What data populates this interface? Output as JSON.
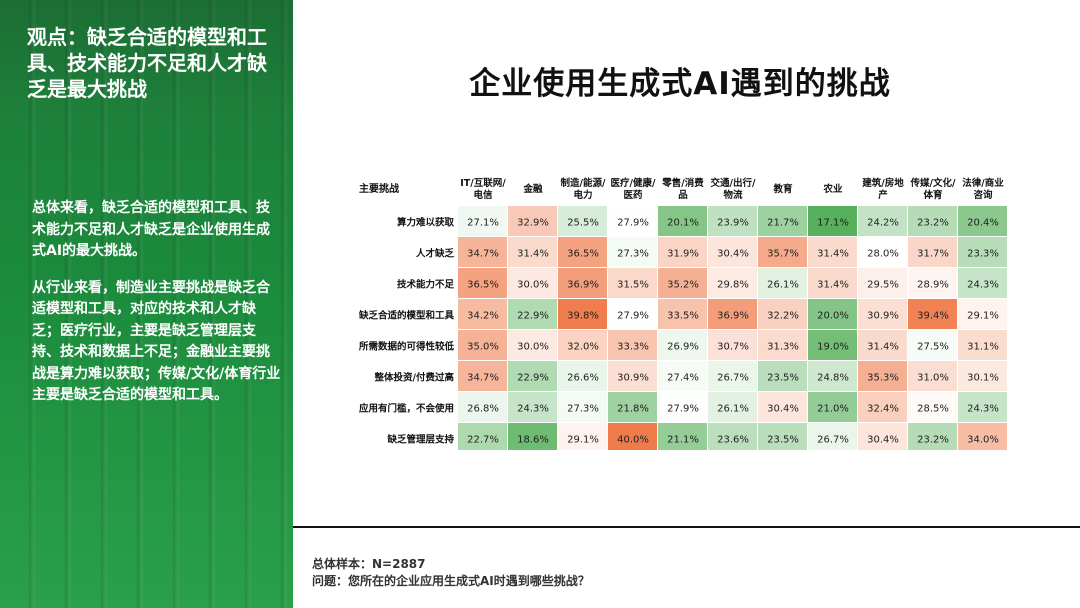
{
  "left_panel": {
    "title": "观点：缺乏合适的模型和工具、技术能力不足和人才缺乏是最大挑战",
    "paragraphs": [
      "总体来看，缺乏合适的模型和工具、技术能力不足和人才缺乏是企业使用生成式AI的最大挑战。",
      "从行业来看，制造业主要挑战是缺乏合适模型和工具，对应的技术和人才缺乏；医疗行业，主要是缺乏管理层支持、技术和数据上不足；金融业主要挑战是算力难以获取；传媒/文化/体育行业主要是缺乏合适的模型和工具。"
    ]
  },
  "main_title": "企业使用生成式AI遇到的挑战",
  "footer": {
    "sample": "总体样本：N=2887",
    "question": "问题：您所在的企业应用生成式AI时遇到哪些挑战？"
  },
  "colors": {
    "high": "#ef7b4b",
    "mid": "#ffffff",
    "low": "#57b05b"
  },
  "chart_data": {
    "type": "heatmap",
    "row_header": "主要挑战",
    "columns": [
      [
        "IT/互联网/",
        "电信"
      ],
      [
        "金融"
      ],
      [
        "制造/能源/",
        "电力"
      ],
      [
        "医疗/健康/",
        "医药"
      ],
      [
        "零售/消费",
        "品"
      ],
      [
        "交通/出行/",
        "物流"
      ],
      [
        "教育"
      ],
      [
        "农业"
      ],
      [
        "建筑/房地",
        "产"
      ],
      [
        "传媒/文化/",
        "体育"
      ],
      [
        "法律/商业",
        "咨询"
      ]
    ],
    "rows": [
      "算力难以获取",
      "人才缺乏",
      "技术能力不足",
      "缺乏合适的模型和工具",
      "所需数据的可得性较低",
      "整体投资/付费过高",
      "应用有门槛，不会使用",
      "缺乏管理层支持"
    ],
    "values": [
      [
        27.1,
        32.9,
        25.5,
        27.9,
        20.1,
        23.9,
        21.7,
        17.1,
        24.2,
        23.2,
        20.4
      ],
      [
        34.7,
        31.4,
        36.5,
        27.3,
        31.9,
        30.4,
        35.7,
        31.4,
        28.0,
        31.7,
        23.3
      ],
      [
        36.5,
        30.0,
        36.9,
        31.5,
        35.2,
        29.8,
        26.1,
        31.4,
        29.5,
        28.9,
        24.3
      ],
      [
        34.2,
        22.9,
        39.8,
        27.9,
        33.5,
        36.9,
        32.2,
        20.0,
        30.9,
        39.4,
        29.1
      ],
      [
        35.0,
        30.0,
        32.0,
        33.3,
        26.9,
        30.7,
        31.3,
        19.0,
        31.4,
        27.5,
        31.1
      ],
      [
        34.7,
        22.9,
        26.6,
        30.9,
        27.4,
        26.7,
        23.5,
        24.8,
        35.3,
        31.0,
        30.1
      ],
      [
        26.8,
        24.3,
        27.3,
        21.8,
        27.9,
        26.1,
        30.4,
        21.0,
        32.4,
        28.5,
        24.3
      ],
      [
        22.7,
        18.6,
        29.1,
        40.0,
        21.1,
        23.6,
        23.5,
        26.7,
        30.4,
        23.2,
        34.0
      ]
    ],
    "unit": "%"
  }
}
